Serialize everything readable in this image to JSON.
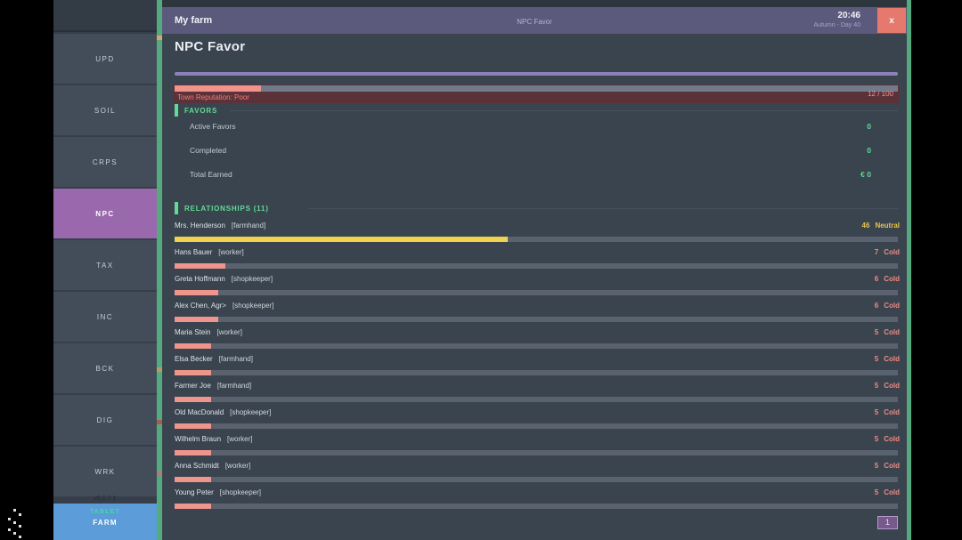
{
  "colors": {
    "green": "#5fdc95",
    "yellow": "#f0d24e",
    "yellow_text": "#e8c44d",
    "salmon": "#f0958b",
    "salmon_text": "#ee8a80",
    "purple_accent": "#8c82ba",
    "sidebar_active": "#9a69ad",
    "close_red": "#e5796e",
    "tablet_edge": "#55a97e",
    "brand_blue": "#5b9cd9"
  },
  "titlebar": {
    "app_title": "My farm",
    "center_title": "NPC Favor",
    "time": "20:46",
    "date": "Autumn - Day 40",
    "close_label": "x"
  },
  "sidebar": {
    "items": [
      {
        "label": "UPD",
        "active": false
      },
      {
        "label": "SOIL",
        "active": false
      },
      {
        "label": "CRPS",
        "active": false
      },
      {
        "label": "NPC",
        "active": true
      },
      {
        "label": "TAX",
        "active": false
      },
      {
        "label": "INC",
        "active": false
      },
      {
        "label": "BCK",
        "active": false
      },
      {
        "label": "DIG",
        "active": false
      },
      {
        "label": "WRK",
        "active": false
      }
    ],
    "version": "v0.1.7.1",
    "brand_top": "TABLET",
    "brand_bottom": "FARM"
  },
  "page": {
    "title": "NPC Favor"
  },
  "reputation": {
    "label": "Town Reputation: Poor",
    "value": "12 / 100",
    "percent": 12
  },
  "favors": {
    "header": "FAVORS",
    "rows": [
      {
        "label": "Active Favors",
        "value": "0"
      },
      {
        "label": "Completed",
        "value": "0"
      },
      {
        "label": "Total Earned",
        "value": "€ 0"
      }
    ]
  },
  "relationships": {
    "header": "RELATIONSHIPS  (11)",
    "rows": [
      {
        "name": "Mrs. Henderson",
        "role": "[farmhand]",
        "points": 46,
        "status": "Neutral",
        "tone": "yellow"
      },
      {
        "name": "Hans Bauer",
        "role": "[worker]",
        "points": 7,
        "status": "Cold",
        "tone": "salmon"
      },
      {
        "name": "Greta Hoffmann",
        "role": "[shopkeeper]",
        "points": 6,
        "status": "Cold",
        "tone": "salmon"
      },
      {
        "name": "Alex Chen, Agr>",
        "role": "[shopkeeper]",
        "points": 6,
        "status": "Cold",
        "tone": "salmon"
      },
      {
        "name": "Maria Stein",
        "role": "[worker]",
        "points": 5,
        "status": "Cold",
        "tone": "salmon"
      },
      {
        "name": "Elsa Becker",
        "role": "[farmhand]",
        "points": 5,
        "status": "Cold",
        "tone": "salmon"
      },
      {
        "name": "Farmer Joe",
        "role": "[farmhand]",
        "points": 5,
        "status": "Cold",
        "tone": "salmon"
      },
      {
        "name": "Old MacDonald",
        "role": "[shopkeeper]",
        "points": 5,
        "status": "Cold",
        "tone": "salmon"
      },
      {
        "name": "Wilhelm Braun",
        "role": "[worker]",
        "points": 5,
        "status": "Cold",
        "tone": "salmon"
      },
      {
        "name": "Anna Schmidt",
        "role": "[worker]",
        "points": 5,
        "status": "Cold",
        "tone": "salmon"
      },
      {
        "name": "Young Peter",
        "role": "[shopkeeper]",
        "points": 5,
        "status": "Cold",
        "tone": "salmon"
      }
    ]
  },
  "pagination": {
    "label": "1"
  }
}
